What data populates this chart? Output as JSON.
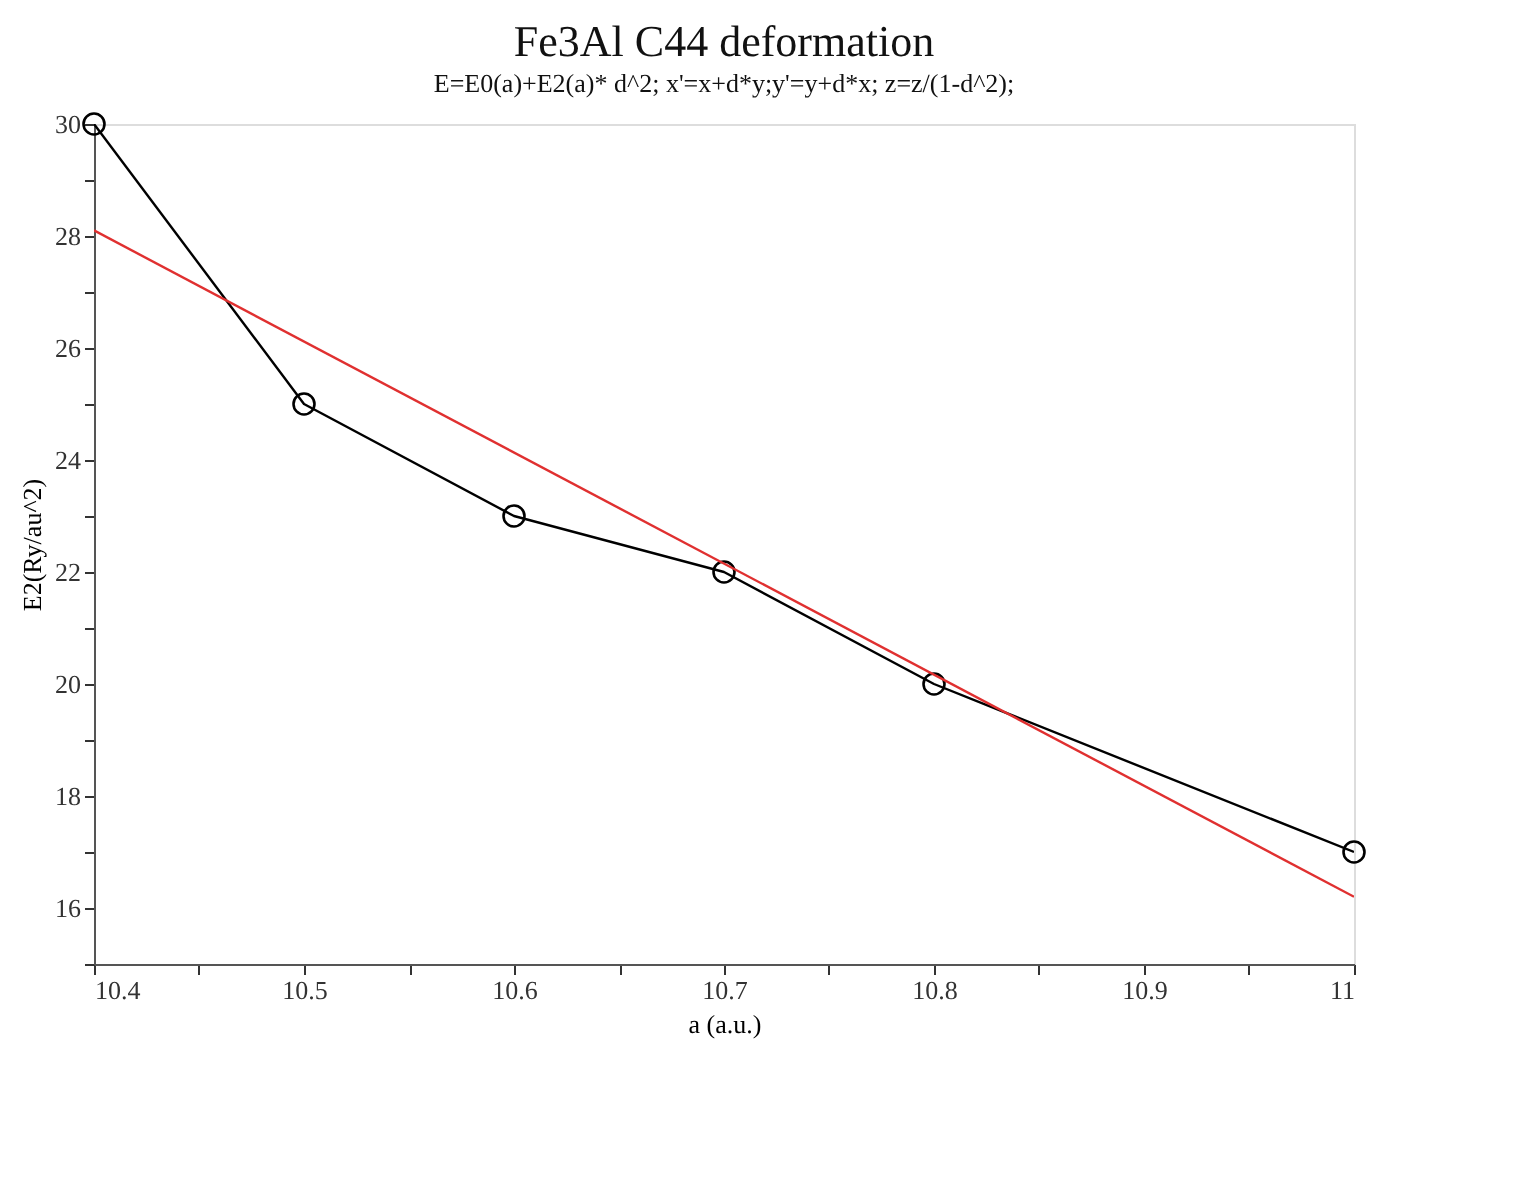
{
  "chart_data": {
    "type": "line",
    "title": "Fe3Al C44 deformation",
    "subtitle": "E=E0(a)+E2(a)* d^2; x'=x+d*y;y'=y+d*x; z=z/(1-d^2);",
    "xlabel": "a (a.u.)",
    "ylabel": "E2(Ry/au^2)",
    "xlim": [
      10.4,
      11
    ],
    "ylim": [
      15,
      30
    ],
    "xticks": [
      10.4,
      {
        "value": 10.45,
        "label": null
      },
      10.5,
      {
        "value": 10.55,
        "label": null
      },
      10.6,
      {
        "value": 10.65,
        "label": null
      },
      10.7,
      {
        "value": 10.75,
        "label": null
      },
      10.8,
      {
        "value": 10.85,
        "label": null
      },
      10.9,
      {
        "value": 10.95,
        "label": null
      },
      11
    ],
    "yticks": [
      {
        "value": 15,
        "label": null
      },
      16,
      {
        "value": 17,
        "label": null
      },
      18,
      {
        "value": 19,
        "label": null
      },
      20,
      {
        "value": 21,
        "label": null
      },
      22,
      {
        "value": 23,
        "label": null
      },
      24,
      {
        "value": 25,
        "label": null
      },
      26,
      {
        "value": 27,
        "label": null
      },
      28,
      {
        "value": 29,
        "label": null
      },
      30
    ],
    "grid": false,
    "series": [
      {
        "color": "#000000",
        "marker": "circle",
        "x": [
          10.4,
          10.5,
          10.6,
          10.7,
          10.8,
          11
        ],
        "values": [
          30,
          25,
          23,
          22,
          20,
          17
        ]
      },
      {
        "type": "line",
        "color": "#e03030",
        "marker": "none",
        "x": [
          10.4,
          11
        ],
        "values": [
          28.1,
          16.2
        ]
      }
    ]
  }
}
